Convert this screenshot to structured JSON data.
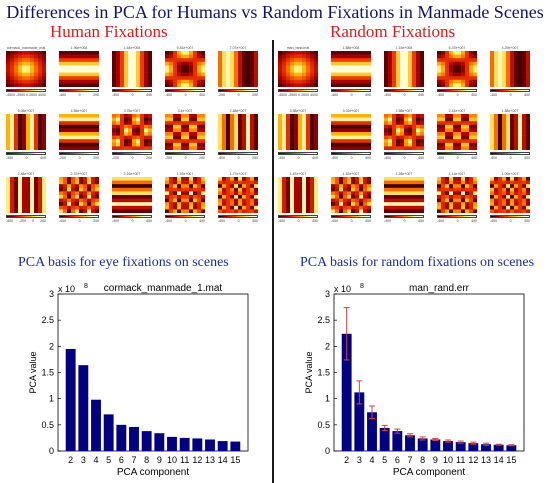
{
  "title": "Differences in PCA for Humans vs Random Fixations in Manmade Scenes",
  "panels": [
    {
      "heading": "Human Fixations",
      "caption": "PCA basis for eye fixations on scenes",
      "cells": [
        {
          "title": "cormack_manmade_mat",
          "ticks": [
            "-4000",
            "-2000",
            "0",
            "2000",
            "4000"
          ]
        },
        {
          "title": "1.96e+008",
          "ticks": [
            "-400",
            "0",
            "200"
          ]
        },
        {
          "title": "1.64e+008",
          "ticks": [
            "-400",
            "0",
            "400"
          ]
        },
        {
          "title": "9.81e+007",
          "ticks": [
            "-400",
            "0",
            "400"
          ]
        },
        {
          "title": "7.07e+007",
          "ticks": [
            "-200",
            "0",
            "200"
          ]
        },
        {
          "title": "5.05e+007",
          "ticks": [
            "-400",
            "0",
            "400"
          ]
        },
        {
          "title": "4.56e+007",
          "ticks": [
            "-200",
            "0",
            "200"
          ]
        },
        {
          "title": "3.78e+007",
          "ticks": [
            "-200",
            "0",
            "200"
          ]
        },
        {
          "title": "3.4e+007",
          "ticks": [
            "-200",
            "0",
            "200"
          ]
        },
        {
          "title": "2.68e+007",
          "ticks": [
            "-400",
            "0",
            "200"
          ]
        },
        {
          "title": "2.48e+007",
          "ticks": [
            "-400",
            "-200",
            "0",
            "200"
          ]
        },
        {
          "title": "2.37e+007",
          "ticks": [
            "-400",
            "0",
            "200"
          ]
        },
        {
          "title": "2.16e+007",
          "ticks": [
            "-400",
            "0",
            "400"
          ]
        },
        {
          "title": "1.92e+007",
          "ticks": [
            "-400",
            "0",
            "400"
          ]
        },
        {
          "title": "1.77e+007",
          "ticks": [
            "-400",
            "0",
            "400"
          ]
        }
      ]
    },
    {
      "heading": "Random Fixations",
      "caption": "PCA basis for random fixations on scenes",
      "cells": [
        {
          "title": "man_rand.mat",
          "ticks": [
            "-4000",
            "-2000",
            "0",
            "2000",
            "4000"
          ]
        },
        {
          "title": "1.88e+008",
          "ticks": [
            "-400",
            "0",
            "400"
          ]
        },
        {
          "title": "1.15e+008",
          "ticks": [
            "-400",
            "0",
            "400"
          ]
        },
        {
          "title": "6.37e+007",
          "ticks": [
            "-400",
            "0",
            "400"
          ]
        },
        {
          "title": "4.29e+007",
          "ticks": [
            "-400",
            "0",
            "400"
          ]
        },
        {
          "title": "3.58e+007",
          "ticks": [
            "-400",
            "0",
            "400"
          ]
        },
        {
          "title": "3.02e+007",
          "ticks": [
            "-400",
            "0",
            "400"
          ]
        },
        {
          "title": "2.58e+007",
          "ticks": [
            "-400",
            "0",
            "400"
          ]
        },
        {
          "title": "2.41e+007",
          "ticks": [
            "-400",
            "0",
            "400"
          ]
        },
        {
          "title": "1.88e+007",
          "ticks": [
            "-400",
            "0",
            "400"
          ]
        },
        {
          "title": "1.67e+007",
          "ticks": [
            "-400",
            "0",
            "400"
          ]
        },
        {
          "title": "1.52e+007",
          "ticks": [
            "-400",
            "0",
            "400"
          ]
        },
        {
          "title": "1.28e+007",
          "ticks": [
            "-400",
            "0",
            "400"
          ]
        },
        {
          "title": "1.11e+007",
          "ticks": [
            "-400",
            "0",
            "400"
          ]
        },
        {
          "title": "1.09e+007",
          "ticks": [
            "-400",
            "0",
            "400"
          ]
        }
      ]
    }
  ],
  "chart_data": [
    {
      "type": "bar",
      "title": "cormack_manmade_1.mat",
      "xlabel": "PCA component",
      "ylabel": "PCA value",
      "exponent_label": "x 10",
      "exponent": "8",
      "categories": [
        "2",
        "3",
        "4",
        "5",
        "6",
        "7",
        "8",
        "9",
        "10",
        "11",
        "12",
        "13",
        "14",
        "15"
      ],
      "values": [
        1.95,
        1.64,
        0.98,
        0.7,
        0.5,
        0.46,
        0.38,
        0.34,
        0.27,
        0.25,
        0.24,
        0.22,
        0.19,
        0.18
      ],
      "yticks": [
        "0",
        "0.5",
        "1",
        "1.5",
        "2",
        "2.5",
        "3"
      ],
      "ylim": [
        0,
        3
      ],
      "bar_color": "#000080"
    },
    {
      "type": "bar",
      "title": "man_rand.err",
      "xlabel": "PCA component",
      "ylabel": "PCA value",
      "exponent_label": "x 10",
      "exponent": "8",
      "categories": [
        "2",
        "3",
        "4",
        "5",
        "6",
        "7",
        "8",
        "9",
        "10",
        "11",
        "12",
        "13",
        "14",
        "15"
      ],
      "values": [
        2.24,
        1.12,
        0.74,
        0.44,
        0.38,
        0.3,
        0.24,
        0.22,
        0.19,
        0.17,
        0.15,
        0.13,
        0.12,
        0.11
      ],
      "errors": [
        0.5,
        0.22,
        0.12,
        0.05,
        0.04,
        0.03,
        0.03,
        0.02,
        0.02,
        0.02,
        0.02,
        0.02,
        0.01,
        0.01
      ],
      "yticks": [
        "0",
        "0.5",
        "1",
        "1.5",
        "2",
        "2.5",
        "3"
      ],
      "ylim": [
        0,
        3
      ],
      "bar_color": "#000080",
      "error_color": "#cc4444"
    }
  ]
}
